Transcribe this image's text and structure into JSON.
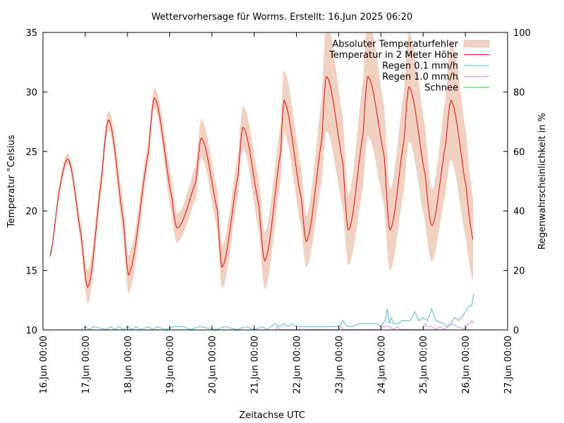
{
  "chart_data": {
    "type": "line",
    "title": "Wettervorhersage für Worms. Erstellt: 16.Jun 2025 06:20",
    "xlabel": "Zeitachse UTC",
    "ylabel": "Temperatur °Celsius",
    "y2label": "Regenwahrscheinlichkeit in %",
    "ylim": [
      10,
      35
    ],
    "y2lim": [
      0,
      100
    ],
    "xlim_days": [
      0,
      11
    ],
    "grid": false,
    "legend_position": "top-right",
    "x_tick_labels": [
      "16.Jun 00:00",
      "17.Jun 00:00",
      "18.Jun 00:00",
      "19.Jun 00:00",
      "20.Jun 00:00",
      "21.Jun 00:00",
      "22.Jun 00:00",
      "23.Jun 00:00",
      "24.Jun 00:00",
      "25.Jun 00:00",
      "26.Jun 00:00",
      "27.Jun 00:00"
    ],
    "y_tick_labels": [
      "10",
      "15",
      "20",
      "25",
      "30",
      "35"
    ],
    "y2_tick_labels": [
      "0",
      "20",
      "40",
      "60",
      "80",
      "100"
    ],
    "colors": {
      "error_band": "#f0d0c0",
      "temperature": "#ff0000",
      "rain01": "#56b4e9",
      "rain10": "#ee82ee",
      "snow": "#00dd00"
    },
    "legend": [
      {
        "label": "Absoluter Temperaturfehler",
        "kind": "band",
        "color": "#f0d0c0"
      },
      {
        "label": "Temperatur in 2 Meter Höhe",
        "kind": "line",
        "color": "#ff0000"
      },
      {
        "label": "Regen 0.1 mm/h",
        "kind": "line",
        "color": "#56b4e9"
      },
      {
        "label": "Regen 1.0 mm/h",
        "kind": "line",
        "color": "#ee82ee"
      },
      {
        "label": "Schnee",
        "kind": "line",
        "color": "#00dd00"
      }
    ],
    "series": [
      {
        "name": "Temperatur in 2 Meter Höhe",
        "x_days": [
          0.17,
          0.4,
          0.62,
          0.9,
          1.08,
          1.38,
          1.57,
          1.91,
          2.05,
          2.5,
          2.66,
          3.06,
          3.2,
          3.62,
          3.76,
          4.13,
          4.25,
          4.62,
          4.75,
          5.11,
          5.27,
          5.63,
          5.72,
          6.12,
          6.26,
          6.6,
          6.72,
          7.1,
          7.24,
          7.58,
          7.7,
          8.08,
          8.22,
          8.55,
          8.68,
          9.05,
          9.22,
          9.53,
          9.68,
          10.02,
          10.18
        ],
        "temperature": [
          16.2,
          22.0,
          24.2,
          18.0,
          13.7,
          22.5,
          27.6,
          19.0,
          14.8,
          25.0,
          29.4,
          21.0,
          18.6,
          22.5,
          26.1,
          20.0,
          15.3,
          23.0,
          27.0,
          20.5,
          15.9,
          25.0,
          29.2,
          21.0,
          17.6,
          26.0,
          31.3,
          24.0,
          18.4,
          26.5,
          31.3,
          24.5,
          18.4,
          26.0,
          30.4,
          23.0,
          18.8,
          25.5,
          29.2,
          22.0,
          17.6
        ],
        "error": [
          0.3,
          0.5,
          0.5,
          0.9,
          1.4,
          0.9,
          0.8,
          1.4,
          1.6,
          1.0,
          0.9,
          1.5,
          1.2,
          1.4,
          1.6,
          1.7,
          1.8,
          1.7,
          1.8,
          2.2,
          2.4,
          2.4,
          2.6,
          2.5,
          2.2,
          3.5,
          4.6,
          3.8,
          3.0,
          4.5,
          5.0,
          4.2,
          3.4,
          4.2,
          4.6,
          4.0,
          3.0,
          4.0,
          5.0,
          4.5,
          3.5
        ]
      },
      {
        "name": "Regen 0.1 mm/h",
        "x_days": [
          0.9,
          1.0,
          1.1,
          1.2,
          1.5,
          1.6,
          1.7,
          1.8,
          1.9,
          2.0,
          2.1,
          2.2,
          2.3,
          2.5,
          2.6,
          2.7,
          2.9,
          3.1,
          3.3,
          3.5,
          3.7,
          4.1,
          4.3,
          4.6,
          4.8,
          5.0,
          5.2,
          5.3,
          5.4,
          5.5,
          5.6,
          5.7,
          5.8,
          5.9,
          6.0,
          6.2,
          6.4,
          6.6,
          6.8,
          7.0,
          7.1,
          7.2,
          7.3,
          7.5,
          7.7,
          7.9,
          8.0,
          8.1,
          8.15,
          8.2,
          8.25,
          8.3,
          8.4,
          8.5,
          8.7,
          8.8,
          8.9,
          9.0,
          9.1,
          9.2,
          9.3,
          9.5,
          9.55,
          9.65,
          9.75,
          9.85,
          9.95,
          10.0,
          10.1,
          10.15,
          10.2
        ],
        "values": [
          0,
          1,
          0,
          1,
          0,
          1,
          0,
          1,
          0,
          1,
          0,
          1,
          0,
          1,
          0,
          1,
          0,
          1,
          1,
          0,
          1,
          0,
          1,
          0,
          1,
          0,
          1,
          0,
          1,
          2,
          1,
          2,
          1,
          2,
          1,
          1,
          1,
          1,
          1,
          1,
          3,
          1,
          1,
          2,
          2,
          2,
          1,
          3,
          7,
          2,
          4,
          2,
          2,
          3,
          3,
          6,
          3,
          4,
          3,
          7,
          3,
          2,
          1,
          2,
          4,
          3,
          5,
          6,
          8,
          8,
          12
        ],
        "y_axis": "right"
      },
      {
        "name": "Regen 1.0 mm/h",
        "x_days": [
          5.5,
          5.55,
          5.6,
          7.0,
          7.05,
          7.1,
          8.0,
          8.05,
          8.1,
          8.2,
          8.3,
          8.4,
          8.45,
          8.5,
          9.0,
          9.05,
          9.1,
          9.2,
          9.3,
          9.4,
          9.5,
          9.6,
          9.7,
          9.8,
          10.0,
          10.05,
          10.1,
          10.15,
          10.2
        ],
        "values": [
          0,
          1,
          0,
          0,
          1,
          0,
          0,
          1,
          1,
          1,
          0,
          1,
          0,
          0,
          0,
          2,
          1,
          1,
          0,
          1,
          0,
          1,
          2,
          1,
          0,
          2,
          2,
          3,
          2
        ],
        "y_axis": "right"
      },
      {
        "name": "Schnee",
        "x_days": [],
        "values": [],
        "y_axis": "right"
      }
    ]
  }
}
